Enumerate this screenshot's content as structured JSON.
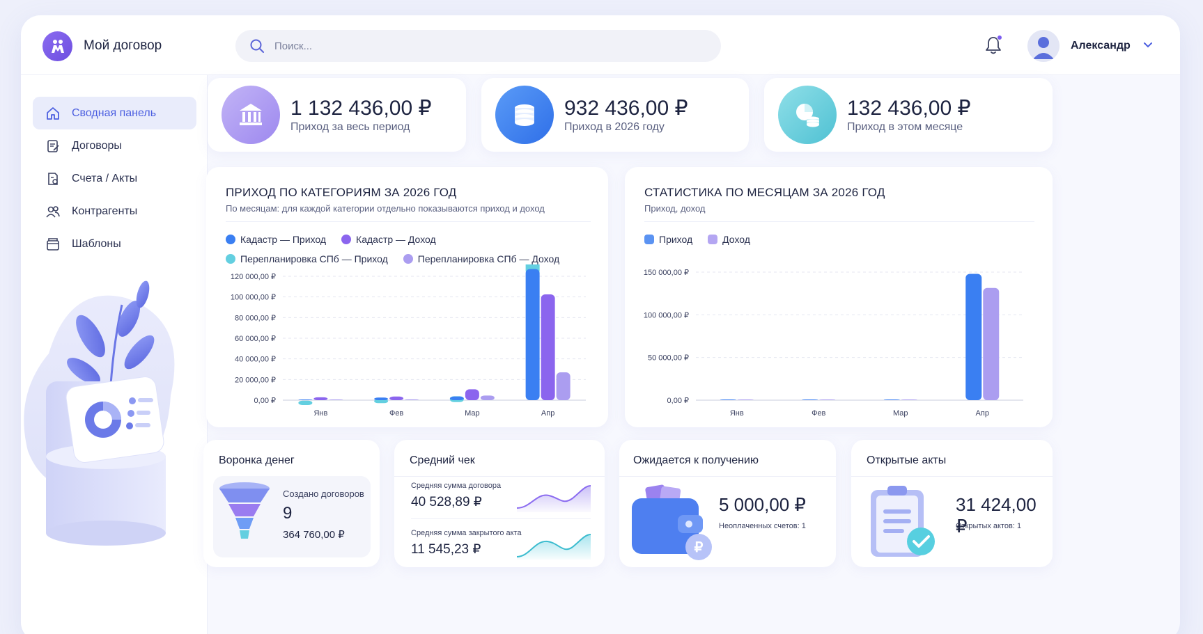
{
  "app": {
    "title": "Мой договор"
  },
  "search": {
    "placeholder": "Поиск..."
  },
  "user": {
    "name": "Александр"
  },
  "sidebar": {
    "items": [
      {
        "label": "Сводная панель",
        "icon": "home-icon",
        "active": true
      },
      {
        "label": "Договоры",
        "icon": "contract-icon",
        "active": false
      },
      {
        "label": "Счета / Акты",
        "icon": "invoice-icon",
        "active": false
      },
      {
        "label": "Контрагенты",
        "icon": "users-icon",
        "active": false
      },
      {
        "label": "Шаблоны",
        "icon": "folder-icon",
        "active": false
      }
    ]
  },
  "stats": [
    {
      "value": "1 132 436,00 ₽",
      "label": "Приход за весь период",
      "icon": "bank-icon",
      "color": "#a38cf2"
    },
    {
      "value": "932 436,00 ₽",
      "label": "Приход в 2026 году",
      "icon": "coins-icon",
      "color": "#3a7ff2"
    },
    {
      "value": "132 436,00 ₽",
      "label": "Приход в этом месяце",
      "icon": "pie-coins-icon",
      "color": "#5cc9d8"
    }
  ],
  "chart_data": [
    {
      "type": "bar",
      "title": "ПРИХОД ПО КАТЕГОРИЯМ ЗА 2026 ГОД",
      "subtitle": "По месяцам: для каждой категории отдельно показываются приход и доход",
      "categories": [
        "Янв",
        "Фев",
        "Мар",
        "Апр"
      ],
      "ylim": [
        0,
        120000
      ],
      "yticks": [
        "0,00 ₽",
        "20 000,00 ₽",
        "40 000,00 ₽",
        "60 000,00 ₽",
        "80 000,00 ₽",
        "100 000,00 ₽",
        "120 000,00 ₽"
      ],
      "grid": true,
      "legend_position": "top-left",
      "stacked_first_pair": true,
      "series": [
        {
          "name": "Кадастр — Приход",
          "color": "#3a7ff2",
          "values": [
            500,
            2500,
            3500,
            127000
          ]
        },
        {
          "name": "Кадастр — Доход",
          "color": "#8b65ee",
          "values": [
            2800,
            3500,
            10500,
            102500
          ]
        },
        {
          "name": "Перепланировка СПб — Приход",
          "color": "#63cfe0",
          "values": [
            1500,
            1000,
            3000,
            16000
          ]
        },
        {
          "name": "Перепланировка СПб — Доход",
          "color": "#ab9df0",
          "values": [
            500,
            800,
            4500,
            27000
          ]
        }
      ],
      "stack": [
        {
          "base": "Кадастр — Приход",
          "top": "Перепланировка СПб — Приход"
        }
      ]
    },
    {
      "type": "bar",
      "title": "СТАТИСТИКА ПО МЕСЯЦАМ ЗА 2026 ГОД",
      "subtitle": "Приход, доход",
      "categories": [
        "Янв",
        "Фев",
        "Мар",
        "Апр"
      ],
      "ylim": [
        0,
        150000
      ],
      "yticks": [
        "0,00 ₽",
        "50 000,00 ₽",
        "100 000,00 ₽",
        "150 000,00 ₽"
      ],
      "grid": true,
      "legend_position": "top-left",
      "series": [
        {
          "name": "Приход",
          "color": "#3a7ff2",
          "values": [
            0,
            0,
            0,
            148000
          ]
        },
        {
          "name": "Доход",
          "color": "#ab9df0",
          "values": [
            0,
            0,
            0,
            131500
          ]
        }
      ]
    }
  ],
  "funnel": {
    "title": "Воронка денег",
    "label": "Создано договоров",
    "count": "9",
    "amount": "364 760,00 ₽"
  },
  "avg_check": {
    "title": "Средний чек",
    "contract_label": "Средняя сумма договора",
    "contract_value": "40 528,89 ₽",
    "act_label": "Средняя сумма закрытого акта",
    "act_value": "11 545,23 ₽"
  },
  "expected": {
    "title": "Ожидается к получению",
    "value": "5 000,00 ₽",
    "note": "Неоплаченных счетов: 1"
  },
  "open_acts": {
    "title": "Открытые акты",
    "value": "31 424,00 ₽",
    "note": "Открытых актов: 1"
  }
}
